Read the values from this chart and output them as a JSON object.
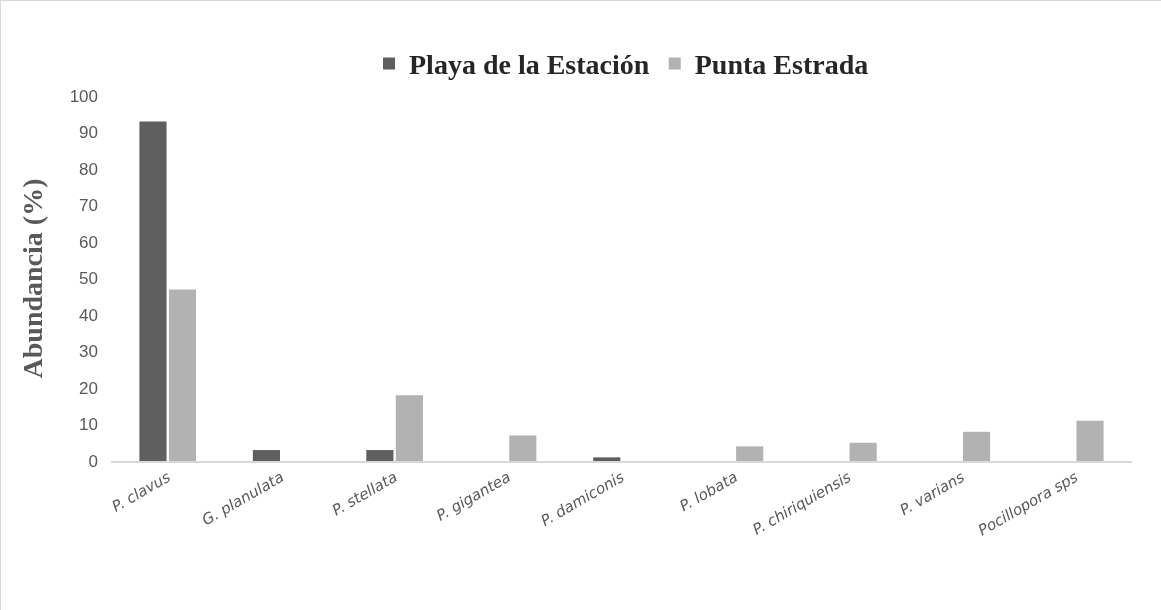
{
  "chart_data": {
    "type": "bar",
    "ylabel": "Abundancia (%)",
    "categories": [
      "P. clavus",
      "G. planulata",
      "P. stellata",
      "P. gigantea",
      "P. damiconis",
      "P. lobata",
      "P. chiriquiensis",
      "P. varians",
      "Pocillopora sps"
    ],
    "series": [
      {
        "name": "Playa de la Estación",
        "color": "#5f5f5f",
        "values": [
          93,
          3,
          3,
          0,
          1,
          0,
          0,
          0,
          0
        ]
      },
      {
        "name": "Punta Estrada",
        "color": "#b2b2b2",
        "values": [
          47,
          0,
          18,
          7,
          0,
          4,
          5,
          8,
          11
        ]
      }
    ],
    "ylim": [
      0,
      100
    ],
    "yticks": [
      0,
      10,
      20,
      30,
      40,
      50,
      60,
      70,
      80,
      90,
      100
    ],
    "grid": false,
    "legend": "top"
  }
}
